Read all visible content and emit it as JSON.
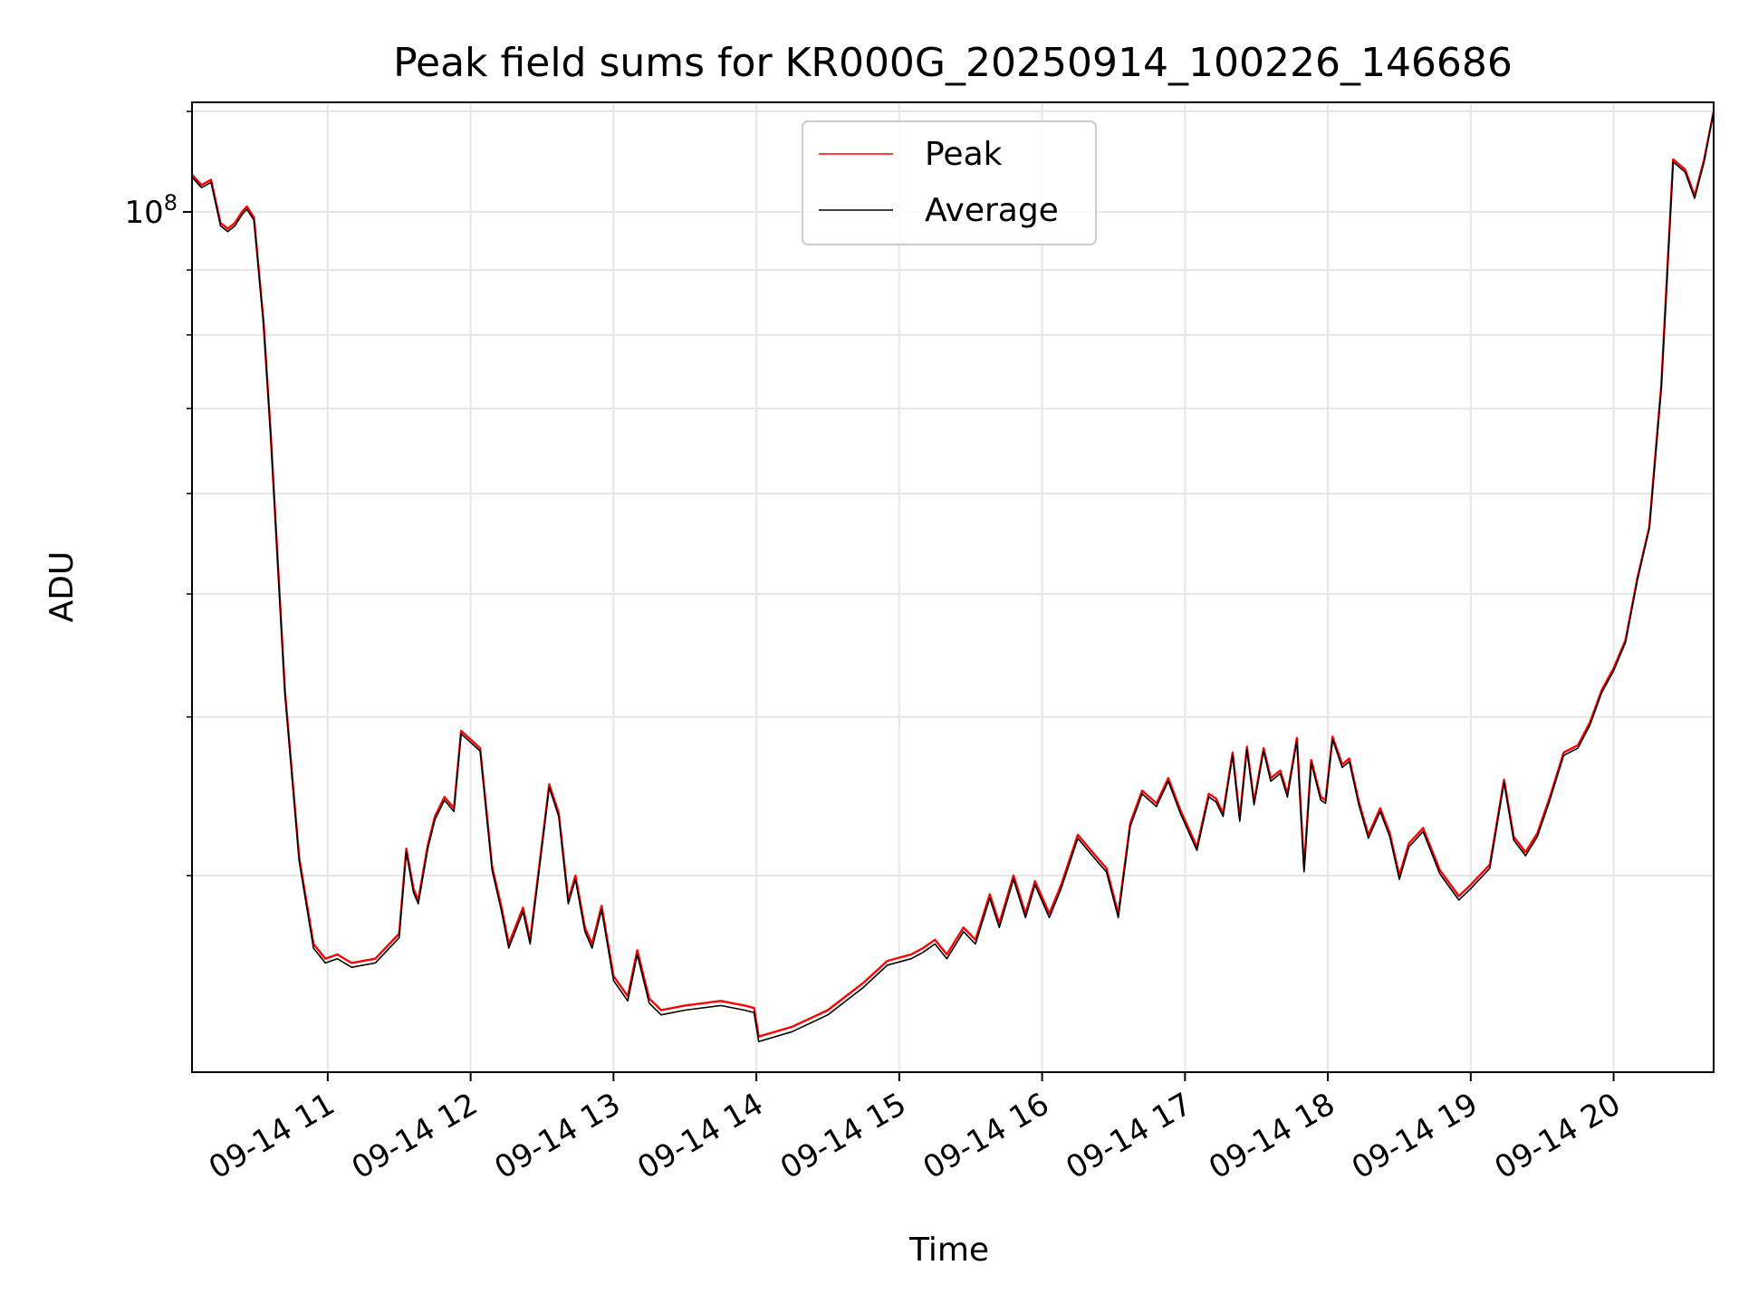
{
  "chart_data": {
    "type": "line",
    "title": "Peak field sums for KR000G_20250914_100226_146686",
    "xlabel": "Time",
    "ylabel": "ADU",
    "yscale": "log",
    "x_tick_labels": [
      "09-14 11",
      "09-14 12",
      "09-14 13",
      "09-14 14",
      "09-14 15",
      "09-14 16",
      "09-14 17",
      "09-14 18",
      "09-14 19",
      "09-14 20"
    ],
    "y_tick_labels": [
      {
        "base": "10",
        "exp": "8"
      }
    ],
    "xlim": [
      "2025-09-14 10:03",
      "2025-09-14 20:42"
    ],
    "ylim": [
      21000000,
      122000000
    ],
    "grid": true,
    "legend": {
      "placement": "top-center",
      "entries": [
        {
          "label": "Peak",
          "color": "#ff0000"
        },
        {
          "label": "Average",
          "color": "#000000"
        }
      ]
    },
    "series": [
      {
        "name": "Peak",
        "color": "#ff0000",
        "x": [
          "2025-09-14 10:03",
          "2025-09-14 10:07",
          "2025-09-14 10:11",
          "2025-09-14 10:15",
          "2025-09-14 10:18",
          "2025-09-14 10:21",
          "2025-09-14 10:24",
          "2025-09-14 10:26",
          "2025-09-14 10:29",
          "2025-09-14 10:33",
          "2025-09-14 10:36",
          "2025-09-14 10:42",
          "2025-09-14 10:48",
          "2025-09-14 10:54",
          "2025-09-14 10:59",
          "2025-09-14 11:04",
          "2025-09-14 11:10",
          "2025-09-14 11:20",
          "2025-09-14 11:30",
          "2025-09-14 11:33",
          "2025-09-14 11:36",
          "2025-09-14 11:38",
          "2025-09-14 11:42",
          "2025-09-14 11:45",
          "2025-09-14 11:49",
          "2025-09-14 11:53",
          "2025-09-14 11:56",
          "2025-09-14 12:00",
          "2025-09-14 12:04",
          "2025-09-14 12:09",
          "2025-09-14 12:13",
          "2025-09-14 12:16",
          "2025-09-14 12:22",
          "2025-09-14 12:25",
          "2025-09-14 12:29",
          "2025-09-14 12:33",
          "2025-09-14 12:37",
          "2025-09-14 12:41",
          "2025-09-14 12:44",
          "2025-09-14 12:48",
          "2025-09-14 12:51",
          "2025-09-14 12:55",
          "2025-09-14 13:00",
          "2025-09-14 13:06",
          "2025-09-14 13:10",
          "2025-09-14 13:15",
          "2025-09-14 13:20",
          "2025-09-14 13:30",
          "2025-09-14 13:45",
          "2025-09-14 13:55",
          "2025-09-14 13:59",
          "2025-09-14 14:01",
          "2025-09-14 14:15",
          "2025-09-14 14:30",
          "2025-09-14 14:45",
          "2025-09-14 14:55",
          "2025-09-14 15:05",
          "2025-09-14 15:10",
          "2025-09-14 15:15",
          "2025-09-14 15:20",
          "2025-09-14 15:27",
          "2025-09-14 15:32",
          "2025-09-14 15:38",
          "2025-09-14 15:42",
          "2025-09-14 15:48",
          "2025-09-14 15:53",
          "2025-09-14 15:57",
          "2025-09-14 16:03",
          "2025-09-14 16:08",
          "2025-09-14 16:15",
          "2025-09-14 16:23",
          "2025-09-14 16:27",
          "2025-09-14 16:32",
          "2025-09-14 16:37",
          "2025-09-14 16:42",
          "2025-09-14 16:48",
          "2025-09-14 16:53",
          "2025-09-14 16:58",
          "2025-09-14 17:05",
          "2025-09-14 17:10",
          "2025-09-14 17:13",
          "2025-09-14 17:16",
          "2025-09-14 17:20",
          "2025-09-14 17:23",
          "2025-09-14 17:26",
          "2025-09-14 17:29",
          "2025-09-14 17:33",
          "2025-09-14 17:36",
          "2025-09-14 17:40",
          "2025-09-14 17:43",
          "2025-09-14 17:47",
          "2025-09-14 17:50",
          "2025-09-14 17:53",
          "2025-09-14 17:57",
          "2025-09-14 17:59",
          "2025-09-14 18:02",
          "2025-09-14 18:06",
          "2025-09-14 18:09",
          "2025-09-14 18:13",
          "2025-09-14 18:17",
          "2025-09-14 18:22",
          "2025-09-14 18:26",
          "2025-09-14 18:30",
          "2025-09-14 18:34",
          "2025-09-14 18:40",
          "2025-09-14 18:47",
          "2025-09-14 18:55",
          "2025-09-14 19:00",
          "2025-09-14 19:08",
          "2025-09-14 19:14",
          "2025-09-14 19:18",
          "2025-09-14 19:23",
          "2025-09-14 19:28",
          "2025-09-14 19:33",
          "2025-09-14 19:39",
          "2025-09-14 19:45",
          "2025-09-14 19:50",
          "2025-09-14 19:55",
          "2025-09-14 20:00",
          "2025-09-14 20:05",
          "2025-09-14 20:10",
          "2025-09-14 20:15",
          "2025-09-14 20:20",
          "2025-09-14 20:25",
          "2025-09-14 20:30",
          "2025-09-14 20:34",
          "2025-09-14 20:38",
          "2025-09-14 20:42"
        ],
        "y": [
          107000000,
          105000000,
          106000000,
          98000000,
          97000000,
          98000000,
          100000000,
          101000000,
          99000000,
          82000000,
          67000000,
          42000000,
          31000000,
          26500000,
          25800000,
          26000000,
          25600000,
          25800000,
          27000000,
          31500000,
          29300000,
          28700000,
          31700000,
          33400000,
          34600000,
          33900000,
          39000000,
          38400000,
          37800000,
          30500000,
          28300000,
          26500000,
          28300000,
          26700000,
          30700000,
          35400000,
          33600000,
          28700000,
          30000000,
          27300000,
          26500000,
          28400000,
          25000000,
          24100000,
          26200000,
          24000000,
          23500000,
          23700000,
          23900000,
          23700000,
          23600000,
          22400000,
          22800000,
          23500000,
          24700000,
          25700000,
          26000000,
          26300000,
          26700000,
          26000000,
          27300000,
          26700000,
          29000000,
          27500000,
          30000000,
          28000000,
          29700000,
          28000000,
          29500000,
          32300000,
          31000000,
          30400000,
          28000000,
          33000000,
          35000000,
          34200000,
          35800000,
          33800000,
          31600000,
          34800000,
          34500000,
          33600000,
          37500000,
          33300000,
          37900000,
          34300000,
          37800000,
          35800000,
          36300000,
          34800000,
          38500000,
          30400000,
          37000000,
          34600000,
          34400000,
          38600000,
          36700000,
          37100000,
          34300000,
          32300000,
          33900000,
          32400000,
          30000000,
          31800000,
          32700000,
          30300000,
          28900000,
          29500000,
          30600000,
          35700000,
          32200000,
          31300000,
          32400000,
          34500000,
          37500000,
          38000000,
          39600000,
          42000000,
          43700000,
          46000000,
          51500000,
          56500000,
          73000000,
          110000000,
          108000000,
          103000000,
          110000000,
          120000000
        ]
      },
      {
        "name": "Average",
        "color": "#000000",
        "x": [
          "2025-09-14 10:03",
          "2025-09-14 10:07",
          "2025-09-14 10:11",
          "2025-09-14 10:15",
          "2025-09-14 10:18",
          "2025-09-14 10:21",
          "2025-09-14 10:24",
          "2025-09-14 10:26",
          "2025-09-14 10:29",
          "2025-09-14 10:33",
          "2025-09-14 10:36",
          "2025-09-14 10:42",
          "2025-09-14 10:48",
          "2025-09-14 10:54",
          "2025-09-14 10:59",
          "2025-09-14 11:04",
          "2025-09-14 11:10",
          "2025-09-14 11:20",
          "2025-09-14 11:30",
          "2025-09-14 11:33",
          "2025-09-14 11:36",
          "2025-09-14 11:38",
          "2025-09-14 11:42",
          "2025-09-14 11:45",
          "2025-09-14 11:49",
          "2025-09-14 11:53",
          "2025-09-14 11:56",
          "2025-09-14 12:00",
          "2025-09-14 12:04",
          "2025-09-14 12:09",
          "2025-09-14 12:13",
          "2025-09-14 12:16",
          "2025-09-14 12:22",
          "2025-09-14 12:25",
          "2025-09-14 12:29",
          "2025-09-14 12:33",
          "2025-09-14 12:37",
          "2025-09-14 12:41",
          "2025-09-14 12:44",
          "2025-09-14 12:48",
          "2025-09-14 12:51",
          "2025-09-14 12:55",
          "2025-09-14 13:00",
          "2025-09-14 13:06",
          "2025-09-14 13:10",
          "2025-09-14 13:15",
          "2025-09-14 13:20",
          "2025-09-14 13:30",
          "2025-09-14 13:45",
          "2025-09-14 13:55",
          "2025-09-14 13:59",
          "2025-09-14 14:01",
          "2025-09-14 14:15",
          "2025-09-14 14:30",
          "2025-09-14 14:45",
          "2025-09-14 14:55",
          "2025-09-14 15:05",
          "2025-09-14 15:10",
          "2025-09-14 15:15",
          "2025-09-14 15:20",
          "2025-09-14 15:27",
          "2025-09-14 15:32",
          "2025-09-14 15:38",
          "2025-09-14 15:42",
          "2025-09-14 15:48",
          "2025-09-14 15:53",
          "2025-09-14 15:57",
          "2025-09-14 16:03",
          "2025-09-14 16:08",
          "2025-09-14 16:15",
          "2025-09-14 16:23",
          "2025-09-14 16:27",
          "2025-09-14 16:32",
          "2025-09-14 16:37",
          "2025-09-14 16:42",
          "2025-09-14 16:48",
          "2025-09-14 16:53",
          "2025-09-14 16:58",
          "2025-09-14 17:05",
          "2025-09-14 17:10",
          "2025-09-14 17:13",
          "2025-09-14 17:16",
          "2025-09-14 17:20",
          "2025-09-14 17:23",
          "2025-09-14 17:26",
          "2025-09-14 17:29",
          "2025-09-14 17:33",
          "2025-09-14 17:36",
          "2025-09-14 17:40",
          "2025-09-14 17:43",
          "2025-09-14 17:47",
          "2025-09-14 17:50",
          "2025-09-14 17:53",
          "2025-09-14 17:57",
          "2025-09-14 17:59",
          "2025-09-14 18:02",
          "2025-09-14 18:06",
          "2025-09-14 18:09",
          "2025-09-14 18:13",
          "2025-09-14 18:17",
          "2025-09-14 18:22",
          "2025-09-14 18:26",
          "2025-09-14 18:30",
          "2025-09-14 18:34",
          "2025-09-14 18:40",
          "2025-09-14 18:47",
          "2025-09-14 18:55",
          "2025-09-14 19:00",
          "2025-09-14 19:08",
          "2025-09-14 19:14",
          "2025-09-14 19:18",
          "2025-09-14 19:23",
          "2025-09-14 19:28",
          "2025-09-14 19:33",
          "2025-09-14 19:39",
          "2025-09-14 19:45",
          "2025-09-14 19:50",
          "2025-09-14 19:55",
          "2025-09-14 20:00",
          "2025-09-14 20:05",
          "2025-09-14 20:10",
          "2025-09-14 20:15",
          "2025-09-14 20:20",
          "2025-09-14 20:25",
          "2025-09-14 20:30",
          "2025-09-14 20:34",
          "2025-09-14 20:38",
          "2025-09-14 20:42"
        ],
        "y": [
          106500000,
          104500000,
          105500000,
          97500000,
          96500000,
          97500000,
          99500000,
          100500000,
          98500000,
          81600000,
          66700000,
          41800000,
          30800000,
          26300000,
          25600000,
          25800000,
          25400000,
          25600000,
          26800000,
          31300000,
          29100000,
          28500000,
          31500000,
          33200000,
          34400000,
          33700000,
          38800000,
          38200000,
          37600000,
          30300000,
          28100000,
          26300000,
          28100000,
          26500000,
          30500000,
          35200000,
          33400000,
          28500000,
          29800000,
          27100000,
          26300000,
          28200000,
          24800000,
          23900000,
          26000000,
          23800000,
          23300000,
          23500000,
          23700000,
          23500000,
          23400000,
          22200000,
          22600000,
          23300000,
          24500000,
          25500000,
          25800000,
          26100000,
          26500000,
          25800000,
          27100000,
          26500000,
          28800000,
          27300000,
          29800000,
          27800000,
          29500000,
          27800000,
          29300000,
          32100000,
          30800000,
          30200000,
          27800000,
          32800000,
          34800000,
          34000000,
          35600000,
          33600000,
          31400000,
          34600000,
          34300000,
          33400000,
          37300000,
          33100000,
          37700000,
          34100000,
          37600000,
          35600000,
          36100000,
          34600000,
          38300000,
          30200000,
          36800000,
          34400000,
          34200000,
          38400000,
          36500000,
          36900000,
          34100000,
          32100000,
          33700000,
          32200000,
          29800000,
          31600000,
          32500000,
          30100000,
          28700000,
          29300000,
          30400000,
          35500000,
          32000000,
          31100000,
          32200000,
          34300000,
          37300000,
          37800000,
          39400000,
          41800000,
          43500000,
          45800000,
          51300000,
          56300000,
          72700000,
          109500000,
          107500000,
          102500000,
          109500000,
          120000000
        ]
      }
    ]
  }
}
